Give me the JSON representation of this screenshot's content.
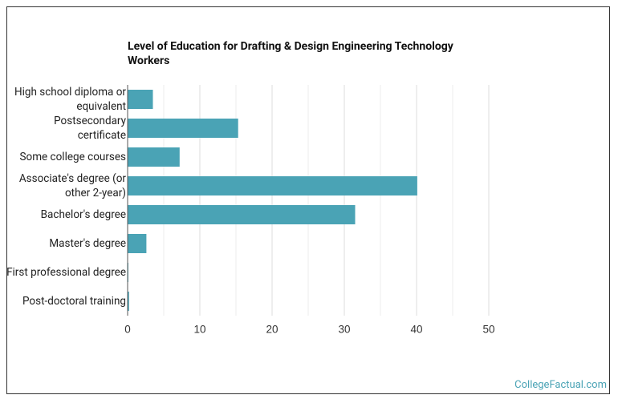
{
  "chart_data": {
    "type": "bar",
    "orientation": "horizontal",
    "title": "Level of Education for Drafting & Design Engineering Technology Workers",
    "categories": [
      "High school diploma or equivalent",
      "Postsecondary certificate",
      "Some college courses",
      "Associate's degree (or other 2-year)",
      "Bachelor's degree",
      "Master's degree",
      "First professional degree",
      "Post-doctoral training"
    ],
    "values": [
      3.5,
      15.3,
      7.2,
      40.1,
      31.5,
      2.6,
      0.1,
      0.2
    ],
    "color": "#4aa3b5",
    "xlim": [
      0,
      50
    ],
    "xticks": [
      0,
      10,
      20,
      30,
      40,
      50
    ],
    "minor_xticks": [
      5,
      15,
      25,
      35,
      45
    ],
    "grid": true,
    "source": "CollegeFactual.com"
  }
}
